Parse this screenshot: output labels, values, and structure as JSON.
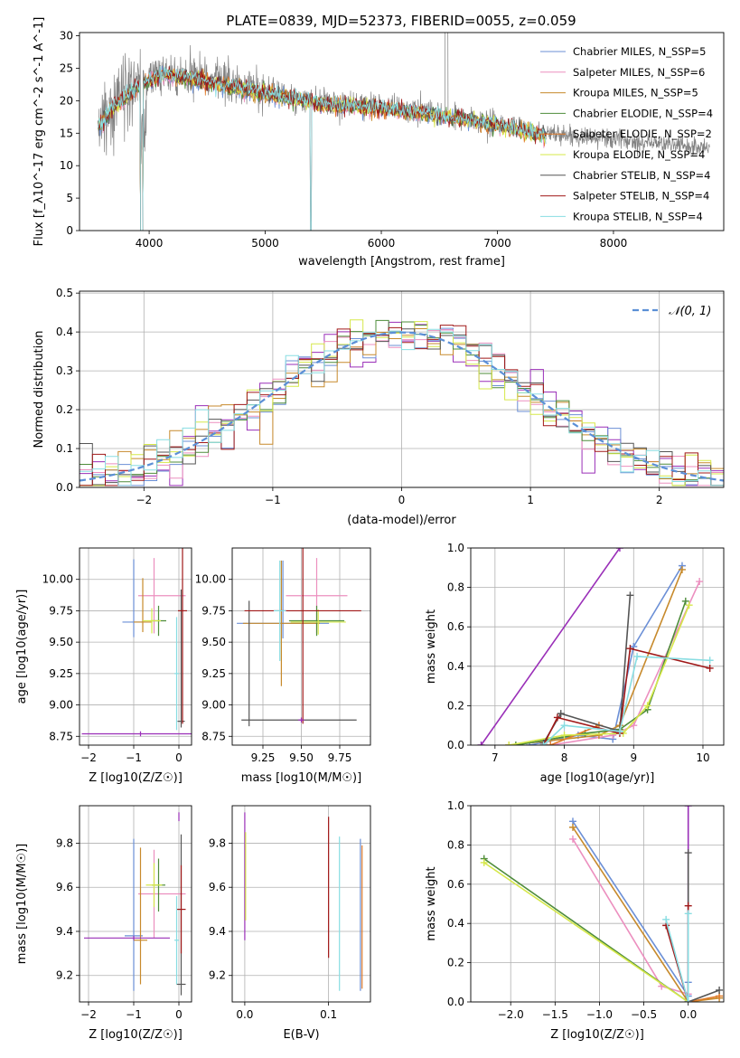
{
  "title": "PLATE=0839, MJD=52373, FIBERID=0055, z=0.059",
  "colors": {
    "chabrier_miles": "#6b8fd6",
    "salpeter_miles": "#ec8fbf",
    "kroupa_miles": "#c78a2c",
    "chabrier_elodie": "#4e8c3a",
    "salpeter_elodie": "#e07b2a",
    "kroupa_elodie": "#d6e84a",
    "chabrier_stelib": "#555555",
    "salpeter_stelib": "#a01818",
    "kroupa_stelib": "#88dde2",
    "spectrum": "#808080",
    "purple": "#9a2fb8",
    "gaussian": "#5b8fd6"
  },
  "chart_data": [
    {
      "id": "spectrum",
      "type": "line",
      "xlabel": "wavelength [Angstrom, rest frame]",
      "ylabel": "Flux [f_λ10^-17 erg cm^-2 s^-1 A^-1]",
      "xlim": [
        3400,
        8950
      ],
      "ylim": [
        0,
        30.5
      ],
      "xticks": [
        "4000",
        "5000",
        "6000",
        "7000",
        "8000"
      ],
      "yticks": [
        "0",
        "5",
        "10",
        "15",
        "20",
        "25",
        "30"
      ],
      "legend": [
        "Chabrier MILES, N_SSP=5",
        "Salpeter MILES, N_SSP=6",
        "Kroupa MILES, N_SSP=5",
        "Chabrier ELODIE, N_SSP=4",
        "Salpeter ELODIE, N_SSP=2",
        "Kroupa ELODIE, N_SSP=4",
        "Chabrier STELIB, N_SSP=4",
        "Salpeter STELIB, N_SSP=4",
        "Kroupa STELIB, N_SSP=4"
      ],
      "legend_position": "top-right",
      "continuum": {
        "x": [
          3580,
          3700,
          3900,
          4100,
          4300,
          4600,
          5000,
          5500,
          6000,
          6500,
          7000,
          7420,
          8800
        ],
        "y": [
          16.5,
          19.5,
          22.5,
          24.5,
          24.0,
          23.0,
          21.5,
          19.8,
          19.2,
          18.0,
          16.5,
          15.0,
          12.8
        ]
      },
      "models_x_range": [
        3560,
        7420
      ]
    },
    {
      "id": "residuals",
      "type": "line",
      "xlabel": "(data-model)/error",
      "ylabel": "Normed distribution",
      "xlim": [
        -2.5,
        2.5
      ],
      "ylim": [
        0,
        0.505
      ],
      "xticks": [
        "−2",
        "−1",
        "0",
        "1",
        "2"
      ],
      "yticks": [
        "0.0",
        "0.1",
        "0.2",
        "0.3",
        "0.4",
        "0.5"
      ],
      "legend": [
        "𝒩(0, 1)"
      ],
      "legend_position": "top-right"
    },
    {
      "id": "age_vs_z",
      "type": "scatter",
      "xlabel": "Z [log10(Z/Z☉)]",
      "ylabel": "age  [log10(age/yr)]",
      "xlim": [
        -2.2,
        0.28
      ],
      "ylim": [
        8.68,
        10.25
      ],
      "xticks": [
        "−2",
        "−1",
        "0"
      ],
      "yticks": [
        "8.75",
        "9.00",
        "9.25",
        "9.50",
        "9.75",
        "10.00"
      ],
      "points": [
        {
          "c": "chabrier_miles",
          "x": -1.0,
          "y": 9.66,
          "xerr": 0.25,
          "yerr": [
            0.12,
            0.5
          ]
        },
        {
          "c": "salpeter_miles",
          "x": -0.55,
          "y": 9.87,
          "xerr": [
            0.35,
            0.7
          ],
          "yerr": 0.3
        },
        {
          "c": "kroupa_miles",
          "x": -0.8,
          "y": 9.66,
          "xerr": 0.2,
          "yerr": [
            0.08,
            0.35
          ]
        },
        {
          "c": "chabrier_elodie",
          "x": -0.45,
          "y": 9.67,
          "xerr": 0.17,
          "yerr": 0.12
        },
        {
          "c": "kroupa_elodie",
          "x": -0.6,
          "y": 9.67,
          "xerr": 0.2,
          "yerr": 0.1
        },
        {
          "c": "chabrier_stelib",
          "x": 0.05,
          "y": 8.87,
          "xerr": 0.08,
          "yerr": [
            0.05,
            1.05
          ]
        },
        {
          "c": "salpeter_stelib",
          "x": 0.08,
          "y": 9.75,
          "xerr": 0.1,
          "yerr": 0.9
        },
        {
          "c": "kroupa_stelib",
          "x": -0.05,
          "y": 9.25,
          "xerr": 0.05,
          "yerr": 0.45
        },
        {
          "c": "purple",
          "x": -0.85,
          "y": 8.77,
          "xerr": 1.3,
          "yerr": 0.02
        }
      ]
    },
    {
      "id": "age_vs_mass",
      "type": "scatter",
      "xlabel": "mass [log10(M/M☉)]",
      "ylabel": "",
      "xlim": [
        9.05,
        9.95
      ],
      "ylim": [
        8.68,
        10.25
      ],
      "xticks": [
        "9.25",
        "9.50",
        "9.75"
      ],
      "yticks": [
        "8.75",
        "9.00",
        "9.25",
        "9.50",
        "9.75",
        "10.00"
      ],
      "points": [
        {
          "c": "chabrier_miles",
          "x": 9.38,
          "y": 9.65,
          "xerr": 0.3,
          "yerr": [
            0.12,
            0.5
          ]
        },
        {
          "c": "salpeter_miles",
          "x": 9.6,
          "y": 9.87,
          "xerr": 0.2,
          "yerr": 0.3
        },
        {
          "c": "kroupa_miles",
          "x": 9.37,
          "y": 9.65,
          "xerr": 0.25,
          "yerr": 0.5
        },
        {
          "c": "chabrier_elodie",
          "x": 9.6,
          "y": 9.67,
          "xerr": 0.18,
          "yerr": 0.12
        },
        {
          "c": "kroupa_elodie",
          "x": 9.61,
          "y": 9.66,
          "xerr": 0.18,
          "yerr": 0.1
        },
        {
          "c": "chabrier_stelib",
          "x": 9.16,
          "y": 8.88,
          "xerr": [
            0.05,
            0.7
          ],
          "yerr": [
            0.05,
            0.95
          ]
        },
        {
          "c": "salpeter_stelib",
          "x": 9.51,
          "y": 9.75,
          "xerr": 0.38,
          "yerr": 0.9
        },
        {
          "c": "kroupa_stelib",
          "x": 9.36,
          "y": 9.75,
          "xerr": 0.04,
          "yerr": 0.4
        },
        {
          "c": "purple",
          "x": 9.5,
          "y": 8.88,
          "xerr": 0.02,
          "yerr": 0.02
        }
      ]
    },
    {
      "id": "massweight_vs_age",
      "type": "line",
      "xlabel": "age  [log10(age/yr)]",
      "ylabel": "mass weight",
      "xlim": [
        6.65,
        10.3
      ],
      "ylim": [
        0,
        1.0
      ],
      "xticks": [
        "7",
        "8",
        "9",
        "10"
      ],
      "yticks": [
        "0.0",
        "0.2",
        "0.4",
        "0.6",
        "0.8",
        "1.0"
      ],
      "series": [
        {
          "c": "purple",
          "x": [
            6.8,
            8.8
          ],
          "y": [
            0.0,
            1.0
          ]
        },
        {
          "c": "chabrier_miles",
          "x": [
            7.5,
            8.2,
            8.7,
            9.0,
            9.7
          ],
          "y": [
            0.0,
            0.05,
            0.03,
            0.5,
            0.91
          ]
        },
        {
          "c": "salpeter_miles",
          "x": [
            7.8,
            8.7,
            9.0,
            9.95
          ],
          "y": [
            0.0,
            0.05,
            0.1,
            0.83
          ]
        },
        {
          "c": "kroupa_miles",
          "x": [
            7.2,
            8.5,
            8.8,
            9.7
          ],
          "y": [
            0.0,
            0.05,
            0.1,
            0.89
          ]
        },
        {
          "c": "chabrier_elodie",
          "x": [
            7.3,
            8.3,
            8.8,
            9.2,
            9.75
          ],
          "y": [
            0.0,
            0.06,
            0.08,
            0.18,
            0.73
          ]
        },
        {
          "c": "salpeter_elodie",
          "x": [
            7.8,
            8.5
          ],
          "y": [
            0.0,
            0.1
          ]
        },
        {
          "c": "kroupa_elodie",
          "x": [
            7.2,
            8.0,
            8.85,
            9.2,
            9.8
          ],
          "y": [
            0.0,
            0.05,
            0.06,
            0.2,
            0.71
          ]
        },
        {
          "c": "chabrier_stelib",
          "x": [
            7.7,
            7.95,
            8.8,
            8.95
          ],
          "y": [
            0.01,
            0.16,
            0.07,
            0.76
          ]
        },
        {
          "c": "salpeter_stelib",
          "x": [
            7.7,
            7.9,
            8.8,
            8.95,
            10.1
          ],
          "y": [
            0.0,
            0.14,
            0.06,
            0.49,
            0.39
          ]
        },
        {
          "c": "kroupa_stelib",
          "x": [
            7.7,
            8.0,
            8.8,
            9.05,
            10.1
          ],
          "y": [
            0.0,
            0.1,
            0.07,
            0.45,
            0.43
          ]
        }
      ]
    },
    {
      "id": "mass_vs_z",
      "type": "scatter",
      "xlabel": "Z [log10(Z/Z☉)]",
      "ylabel": "mass [log10(M/M☉)]",
      "xlim": [
        -2.2,
        0.28
      ],
      "ylim": [
        9.08,
        9.97
      ],
      "xticks": [
        "−2",
        "−1",
        "0"
      ],
      "yticks": [
        "9.2",
        "9.4",
        "9.6",
        "9.8"
      ],
      "points": [
        {
          "c": "chabrier_miles",
          "x": -1.0,
          "y": 9.38,
          "xerr": 0.2,
          "yerr": [
            0.25,
            0.44
          ]
        },
        {
          "c": "salpeter_miles",
          "x": -0.55,
          "y": 9.57,
          "xerr": [
            0.35,
            0.7
          ],
          "yerr": 0.2
        },
        {
          "c": "kroupa_miles",
          "x": -0.85,
          "y": 9.36,
          "xerr": 0.15,
          "yerr": [
            0.2,
            0.42
          ]
        },
        {
          "c": "chabrier_elodie",
          "x": -0.45,
          "y": 9.61,
          "xerr": 0.15,
          "yerr": 0.12
        },
        {
          "c": "kroupa_elodie",
          "x": -0.55,
          "y": 9.61,
          "xerr": 0.18,
          "yerr": 0.1
        },
        {
          "c": "chabrier_stelib",
          "x": 0.05,
          "y": 9.16,
          "xerr": 0.1,
          "yerr": [
            0.05,
            0.68
          ]
        },
        {
          "c": "salpeter_stelib",
          "x": 0.05,
          "y": 9.5,
          "xerr": 0.1,
          "yerr": 0.2
        },
        {
          "c": "kroupa_stelib",
          "x": -0.05,
          "y": 9.36,
          "xerr": 0.05,
          "yerr": 0.2
        },
        {
          "c": "purple",
          "x": -1.0,
          "y": 9.37,
          "xerr": [
            1.1,
            0.8
          ],
          "yerr": 0.01
        },
        {
          "c": "purple",
          "x": 0.0,
          "y": 9.92,
          "xerr": 0.01,
          "yerr": 0.02
        }
      ]
    },
    {
      "id": "mass_vs_ebv",
      "type": "scatter",
      "xlabel": "E(B-V)",
      "ylabel": "",
      "xlim": [
        -0.015,
        0.15
      ],
      "ylim": [
        9.08,
        9.97
      ],
      "xticks": [
        "0.0",
        "0.1"
      ],
      "yticks": [
        "9.2",
        "9.4",
        "9.6",
        "9.8"
      ],
      "points": [
        {
          "c": "purple",
          "x": 0.0,
          "y": 9.65,
          "xerr": 0,
          "yerr": 0.29
        },
        {
          "c": "kroupa_elodie",
          "x": 0.001,
          "y": 9.65,
          "xerr": 0,
          "yerr": 0.2
        },
        {
          "c": "salpeter_stelib",
          "x": 0.1,
          "y": 9.5,
          "xerr": 0,
          "yerr": [
            0.22,
            0.42
          ]
        },
        {
          "c": "kroupa_stelib",
          "x": 0.113,
          "y": 9.5,
          "xerr": 0,
          "yerr": [
            0.37,
            0.33
          ]
        },
        {
          "c": "chabrier_miles",
          "x": 0.138,
          "y": 9.5,
          "xerr": 0,
          "yerr": [
            0.37,
            0.32
          ]
        },
        {
          "c": "salpeter_elodie",
          "x": 0.14,
          "y": 9.5,
          "xerr": 0,
          "yerr": [
            0.36,
            0.29
          ]
        }
      ]
    },
    {
      "id": "massweight_vs_z",
      "type": "line",
      "xlabel": "Z [log10(Z/Z☉)]",
      "ylabel": "mass weight",
      "xlim": [
        -2.45,
        0.4
      ],
      "ylim": [
        0,
        1.0
      ],
      "xticks": [
        "−2.0",
        "−1.5",
        "−1.0",
        "−0.5",
        "0.0"
      ],
      "yticks": [
        "0.0",
        "0.2",
        "0.4",
        "0.6",
        "0.8",
        "1.0"
      ],
      "series": [
        {
          "c": "purple",
          "x": [
            0.0,
            0.0
          ],
          "y": [
            0.0,
            1.0
          ]
        },
        {
          "c": "chabrier_miles",
          "x": [
            -1.3,
            0.0,
            0.0
          ],
          "y": [
            0.92,
            0.03,
            0.1
          ]
        },
        {
          "c": "salpeter_miles",
          "x": [
            -1.3,
            -0.3,
            0.0
          ],
          "y": [
            0.83,
            0.08,
            0.04
          ]
        },
        {
          "c": "kroupa_miles",
          "x": [
            -1.3,
            0.0,
            0.35
          ],
          "y": [
            0.89,
            0.0,
            0.02
          ]
        },
        {
          "c": "chabrier_elodie",
          "x": [
            -2.3,
            0.0
          ],
          "y": [
            0.73,
            0.0
          ]
        },
        {
          "c": "salpeter_elodie",
          "x": [
            0.0,
            0.35
          ],
          "y": [
            0.0,
            0.03
          ]
        },
        {
          "c": "kroupa_elodie",
          "x": [
            -2.3,
            0.0
          ],
          "y": [
            0.71,
            0.0
          ]
        },
        {
          "c": "chabrier_stelib",
          "x": [
            0.0,
            0.0,
            0.35
          ],
          "y": [
            0.76,
            0.0,
            0.06
          ]
        },
        {
          "c": "salpeter_stelib",
          "x": [
            -0.25,
            0.0,
            0.0
          ],
          "y": [
            0.39,
            0.0,
            0.49
          ]
        },
        {
          "c": "kroupa_stelib",
          "x": [
            -0.25,
            0.0,
            0.0
          ],
          "y": [
            0.42,
            0.0,
            0.45
          ]
        }
      ]
    }
  ]
}
